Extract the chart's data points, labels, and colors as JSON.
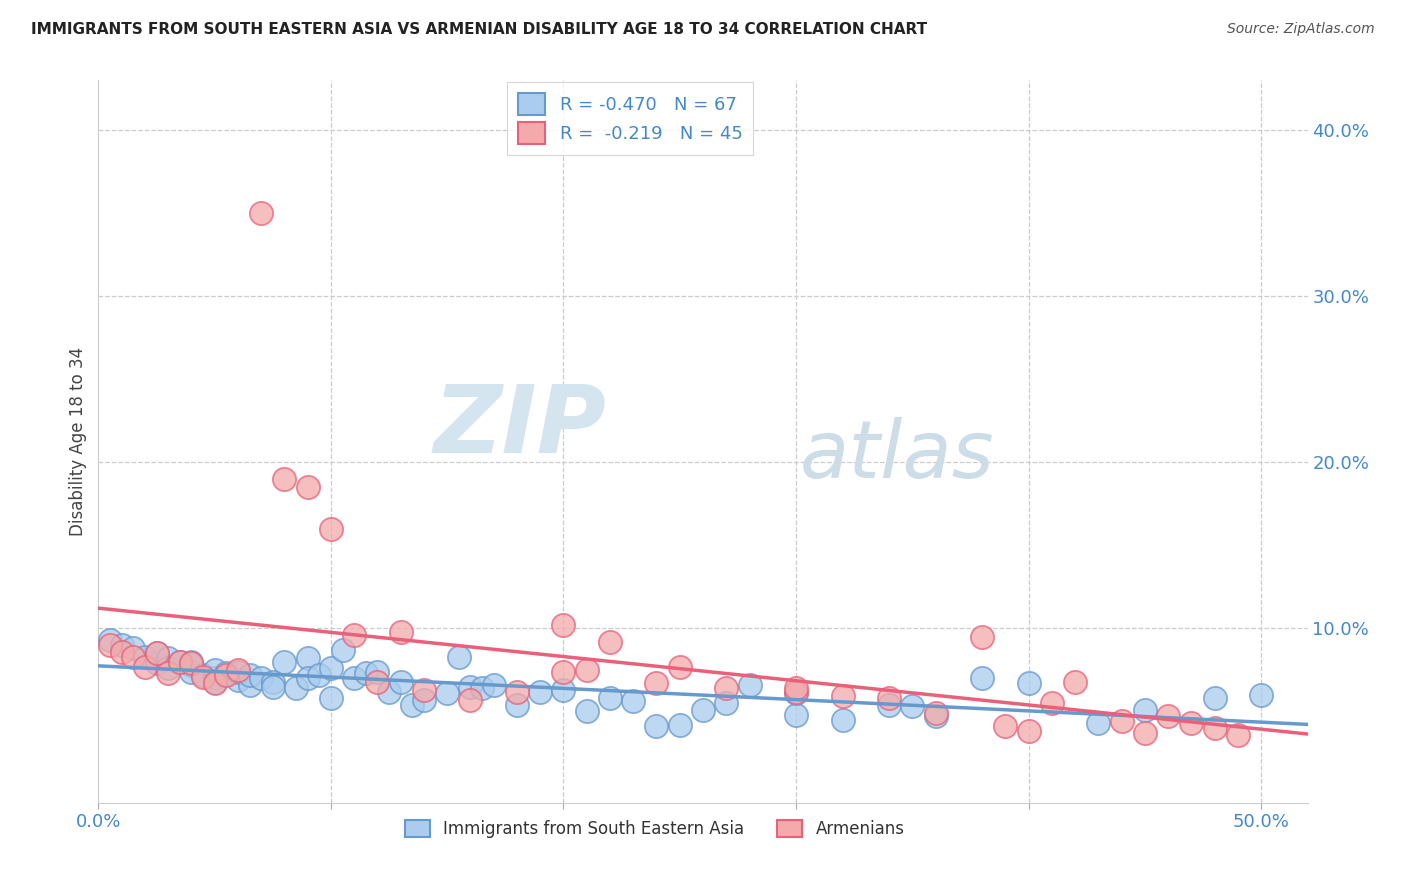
{
  "title": "IMMIGRANTS FROM SOUTH EASTERN ASIA VS ARMENIAN DISABILITY AGE 18 TO 34 CORRELATION CHART",
  "source": "Source: ZipAtlas.com",
  "ylabel": "Disability Age 18 to 34",
  "right_yticks": [
    "40.0%",
    "30.0%",
    "20.0%",
    "10.0%"
  ],
  "right_ytick_vals": [
    0.4,
    0.3,
    0.2,
    0.1
  ],
  "xlim": [
    0.0,
    0.52
  ],
  "ylim": [
    -0.005,
    0.43
  ],
  "legend_blue_R": "R = -0.470",
  "legend_blue_N": "N = 67",
  "legend_pink_R": "R =  -0.219",
  "legend_pink_N": "N = 45",
  "legend_label_blue": "Immigrants from South Eastern Asia",
  "legend_label_pink": "Armenians",
  "watermark_ZIP": "ZIP",
  "watermark_atlas": "atlas",
  "watermark_color": "#ccdded",
  "blue_scatter_x": [
    0.005,
    0.01,
    0.015,
    0.02,
    0.025,
    0.025,
    0.03,
    0.03,
    0.035,
    0.04,
    0.04,
    0.04,
    0.045,
    0.05,
    0.05,
    0.05,
    0.055,
    0.06,
    0.06,
    0.065,
    0.065,
    0.07,
    0.075,
    0.075,
    0.08,
    0.085,
    0.09,
    0.09,
    0.095,
    0.1,
    0.1,
    0.105,
    0.11,
    0.115,
    0.12,
    0.125,
    0.13,
    0.135,
    0.14,
    0.15,
    0.155,
    0.16,
    0.165,
    0.17,
    0.18,
    0.19,
    0.2,
    0.21,
    0.22,
    0.23,
    0.24,
    0.25,
    0.26,
    0.27,
    0.28,
    0.3,
    0.32,
    0.34,
    0.36,
    0.38,
    0.4,
    0.43,
    0.45,
    0.48,
    0.5,
    0.3,
    0.35
  ],
  "blue_scatter_y": [
    0.093,
    0.09,
    0.088,
    0.083,
    0.079,
    0.085,
    0.082,
    0.076,
    0.08,
    0.078,
    0.074,
    0.08,
    0.072,
    0.07,
    0.075,
    0.068,
    0.073,
    0.069,
    0.074,
    0.066,
    0.072,
    0.07,
    0.068,
    0.065,
    0.08,
    0.064,
    0.082,
    0.07,
    0.072,
    0.076,
    0.058,
    0.087,
    0.07,
    0.073,
    0.074,
    0.062,
    0.068,
    0.054,
    0.057,
    0.061,
    0.083,
    0.065,
    0.064,
    0.066,
    0.054,
    0.062,
    0.063,
    0.05,
    0.058,
    0.056,
    0.041,
    0.042,
    0.051,
    0.055,
    0.066,
    0.048,
    0.045,
    0.054,
    0.047,
    0.07,
    0.067,
    0.043,
    0.051,
    0.058,
    0.06,
    0.061,
    0.053
  ],
  "pink_scatter_x": [
    0.005,
    0.01,
    0.015,
    0.02,
    0.025,
    0.03,
    0.035,
    0.04,
    0.045,
    0.05,
    0.055,
    0.06,
    0.07,
    0.08,
    0.09,
    0.1,
    0.11,
    0.12,
    0.13,
    0.14,
    0.16,
    0.18,
    0.2,
    0.21,
    0.22,
    0.24,
    0.27,
    0.3,
    0.32,
    0.34,
    0.36,
    0.38,
    0.39,
    0.4,
    0.41,
    0.42,
    0.44,
    0.45,
    0.46,
    0.47,
    0.48,
    0.49,
    0.2,
    0.25,
    0.3
  ],
  "pink_scatter_y": [
    0.09,
    0.086,
    0.083,
    0.077,
    0.085,
    0.073,
    0.08,
    0.079,
    0.071,
    0.067,
    0.072,
    0.075,
    0.35,
    0.19,
    0.185,
    0.16,
    0.096,
    0.068,
    0.098,
    0.063,
    0.057,
    0.062,
    0.074,
    0.075,
    0.092,
    0.067,
    0.064,
    0.062,
    0.059,
    0.058,
    0.049,
    0.095,
    0.041,
    0.038,
    0.055,
    0.068,
    0.044,
    0.037,
    0.047,
    0.043,
    0.04,
    0.036,
    0.102,
    0.077,
    0.064
  ],
  "blue_line_color": "#6699cc",
  "pink_line_color": "#e8607a",
  "blue_scatter_color": "#aaccee",
  "pink_scatter_color": "#f4aaaa",
  "axis_color": "#4488cc",
  "title_color": "#222222",
  "grid_color": "#cccccc",
  "background_color": "#ffffff"
}
